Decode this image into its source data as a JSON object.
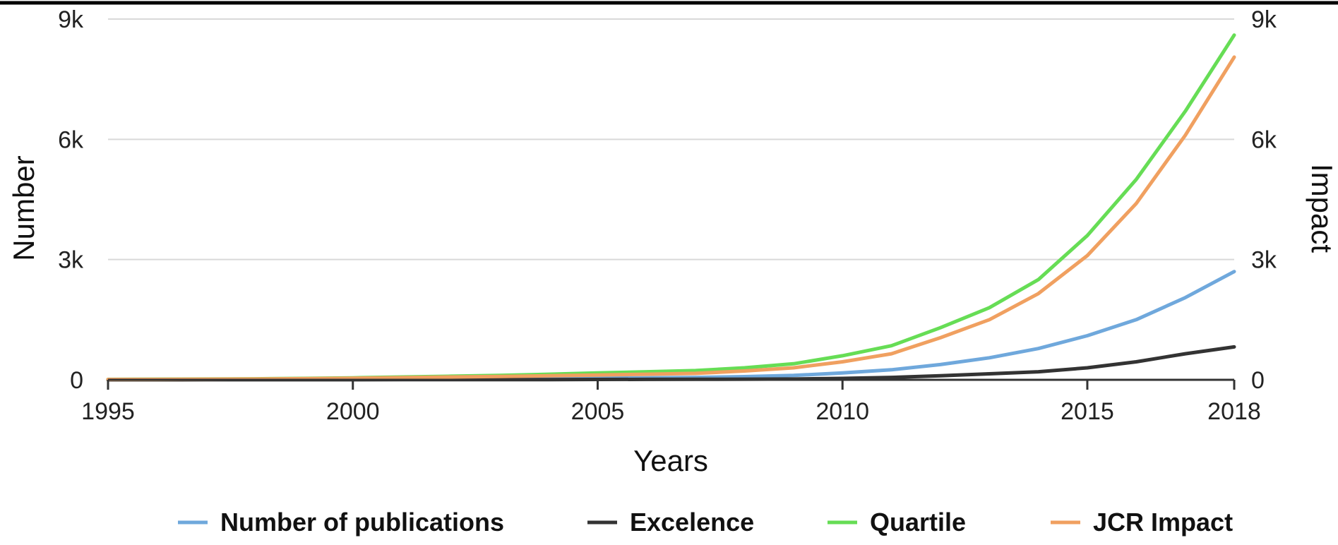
{
  "chart_data": {
    "type": "line",
    "title": "",
    "xlabel": "Years",
    "ylabel": "Number",
    "y2label": "Impact",
    "x": [
      1995,
      1996,
      1997,
      1998,
      1999,
      2000,
      2001,
      2002,
      2003,
      2004,
      2005,
      2006,
      2007,
      2008,
      2009,
      2010,
      2011,
      2012,
      2013,
      2014,
      2015,
      2016,
      2017,
      2018
    ],
    "xticks": [
      1995,
      2000,
      2005,
      2010,
      2015,
      2018
    ],
    "xlim": [
      1995,
      2018
    ],
    "ylim": [
      0,
      9000
    ],
    "yticks": [
      0,
      3000,
      6000,
      9000
    ],
    "ytick_labels": [
      "0",
      "3k",
      "6k",
      "9k"
    ],
    "y2ticks": [
      0,
      3000,
      6000,
      9000
    ],
    "y2tick_labels": [
      "0",
      "3k",
      "6k",
      "9k"
    ],
    "grid": true,
    "legend_position": "bottom",
    "series": [
      {
        "name": "Number of publications",
        "color": "#6fa8dc",
        "values": [
          5,
          6,
          8,
          10,
          12,
          15,
          20,
          25,
          30,
          35,
          40,
          50,
          60,
          80,
          110,
          170,
          250,
          380,
          550,
          780,
          1100,
          1500,
          2050,
          2700
        ]
      },
      {
        "name": "Excelence",
        "color": "#333333",
        "values": [
          0,
          0,
          1,
          1,
          2,
          2,
          3,
          4,
          5,
          6,
          8,
          10,
          12,
          15,
          20,
          35,
          60,
          100,
          150,
          200,
          300,
          450,
          650,
          820
        ]
      },
      {
        "name": "Quartile",
        "color": "#66dd55",
        "values": [
          10,
          15,
          20,
          25,
          35,
          50,
          70,
          90,
          110,
          140,
          170,
          200,
          230,
          300,
          400,
          600,
          850,
          1300,
          1800,
          2500,
          3600,
          5000,
          6700,
          8600
        ]
      },
      {
        "name": "JCR Impact",
        "color": "#f0a060",
        "values": [
          8,
          10,
          15,
          20,
          28,
          40,
          55,
          70,
          85,
          100,
          120,
          140,
          160,
          220,
          300,
          450,
          650,
          1050,
          1500,
          2150,
          3100,
          4400,
          6100,
          8050
        ]
      }
    ]
  }
}
